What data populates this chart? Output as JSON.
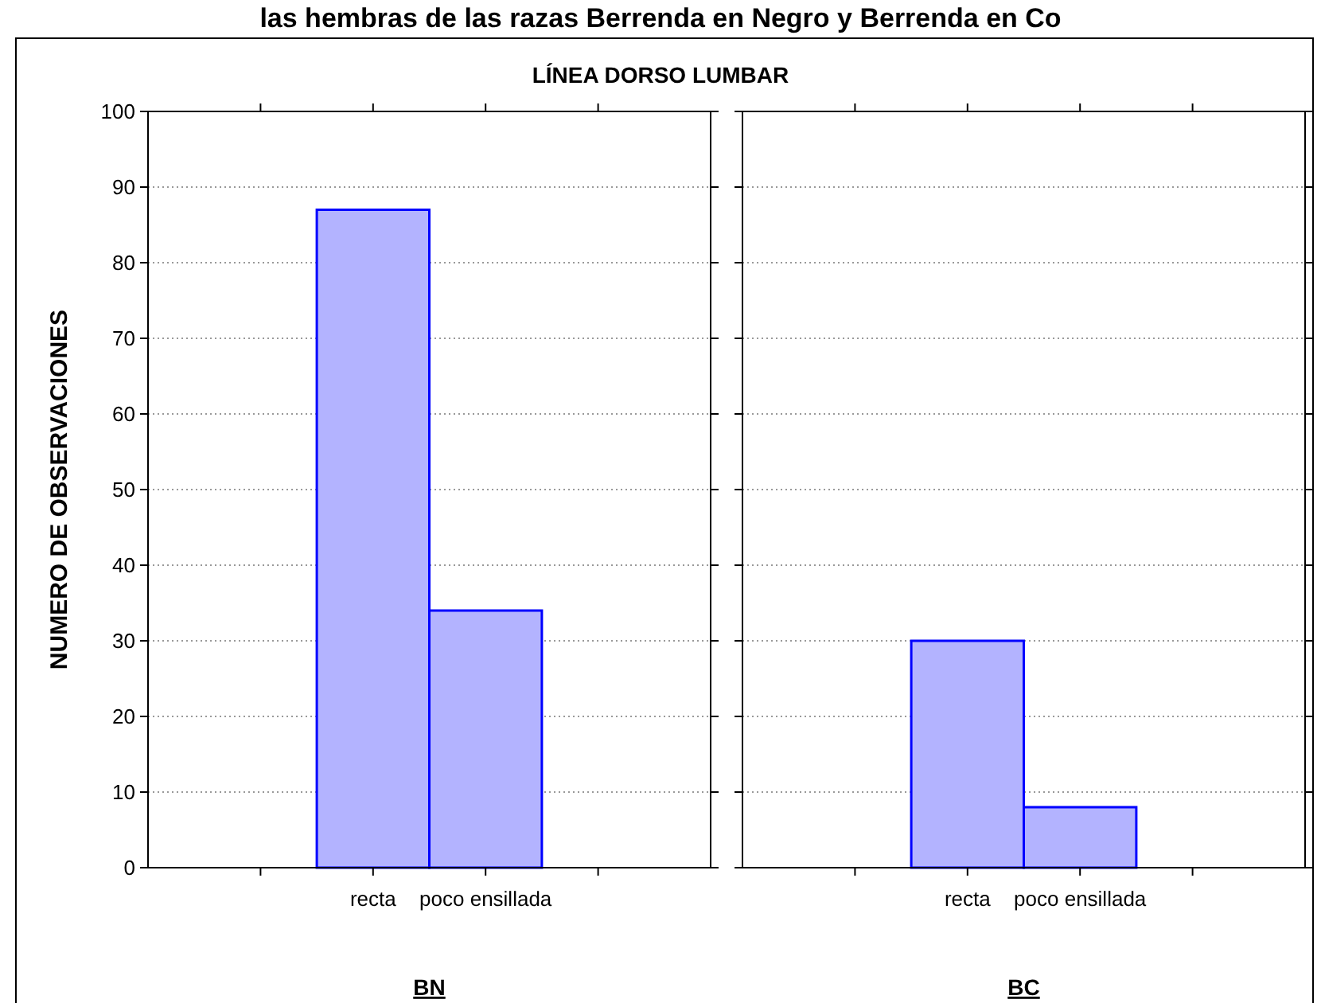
{
  "chart_data": [
    {
      "type": "bar",
      "title": "las hembras de las razas Berrenda en Negro y Berrenda en Co",
      "subtitle": "LÍNEA DORSO LUMBAR",
      "ylabel": "NUMERO DE OBSERVACIONES",
      "xlabel": "BN",
      "categories": [
        "recta",
        "poco ensillada"
      ],
      "values": [
        87,
        34
      ],
      "color": "#0000ff",
      "ylim": [
        0,
        100
      ],
      "yticks": [
        0,
        10,
        20,
        30,
        40,
        50,
        60,
        70,
        80,
        90,
        100
      ],
      "grid": "y"
    },
    {
      "type": "bar",
      "xlabel": "BC",
      "categories": [
        "recta",
        "poco ensillada"
      ],
      "values": [
        30,
        8
      ],
      "color": "#0000ff",
      "ylim": [
        0,
        100
      ],
      "yticks": [
        0,
        10,
        20,
        30,
        40,
        50,
        60,
        70,
        80,
        90,
        100
      ],
      "grid": "y",
      "tick_labels": "x"
    }
  ]
}
